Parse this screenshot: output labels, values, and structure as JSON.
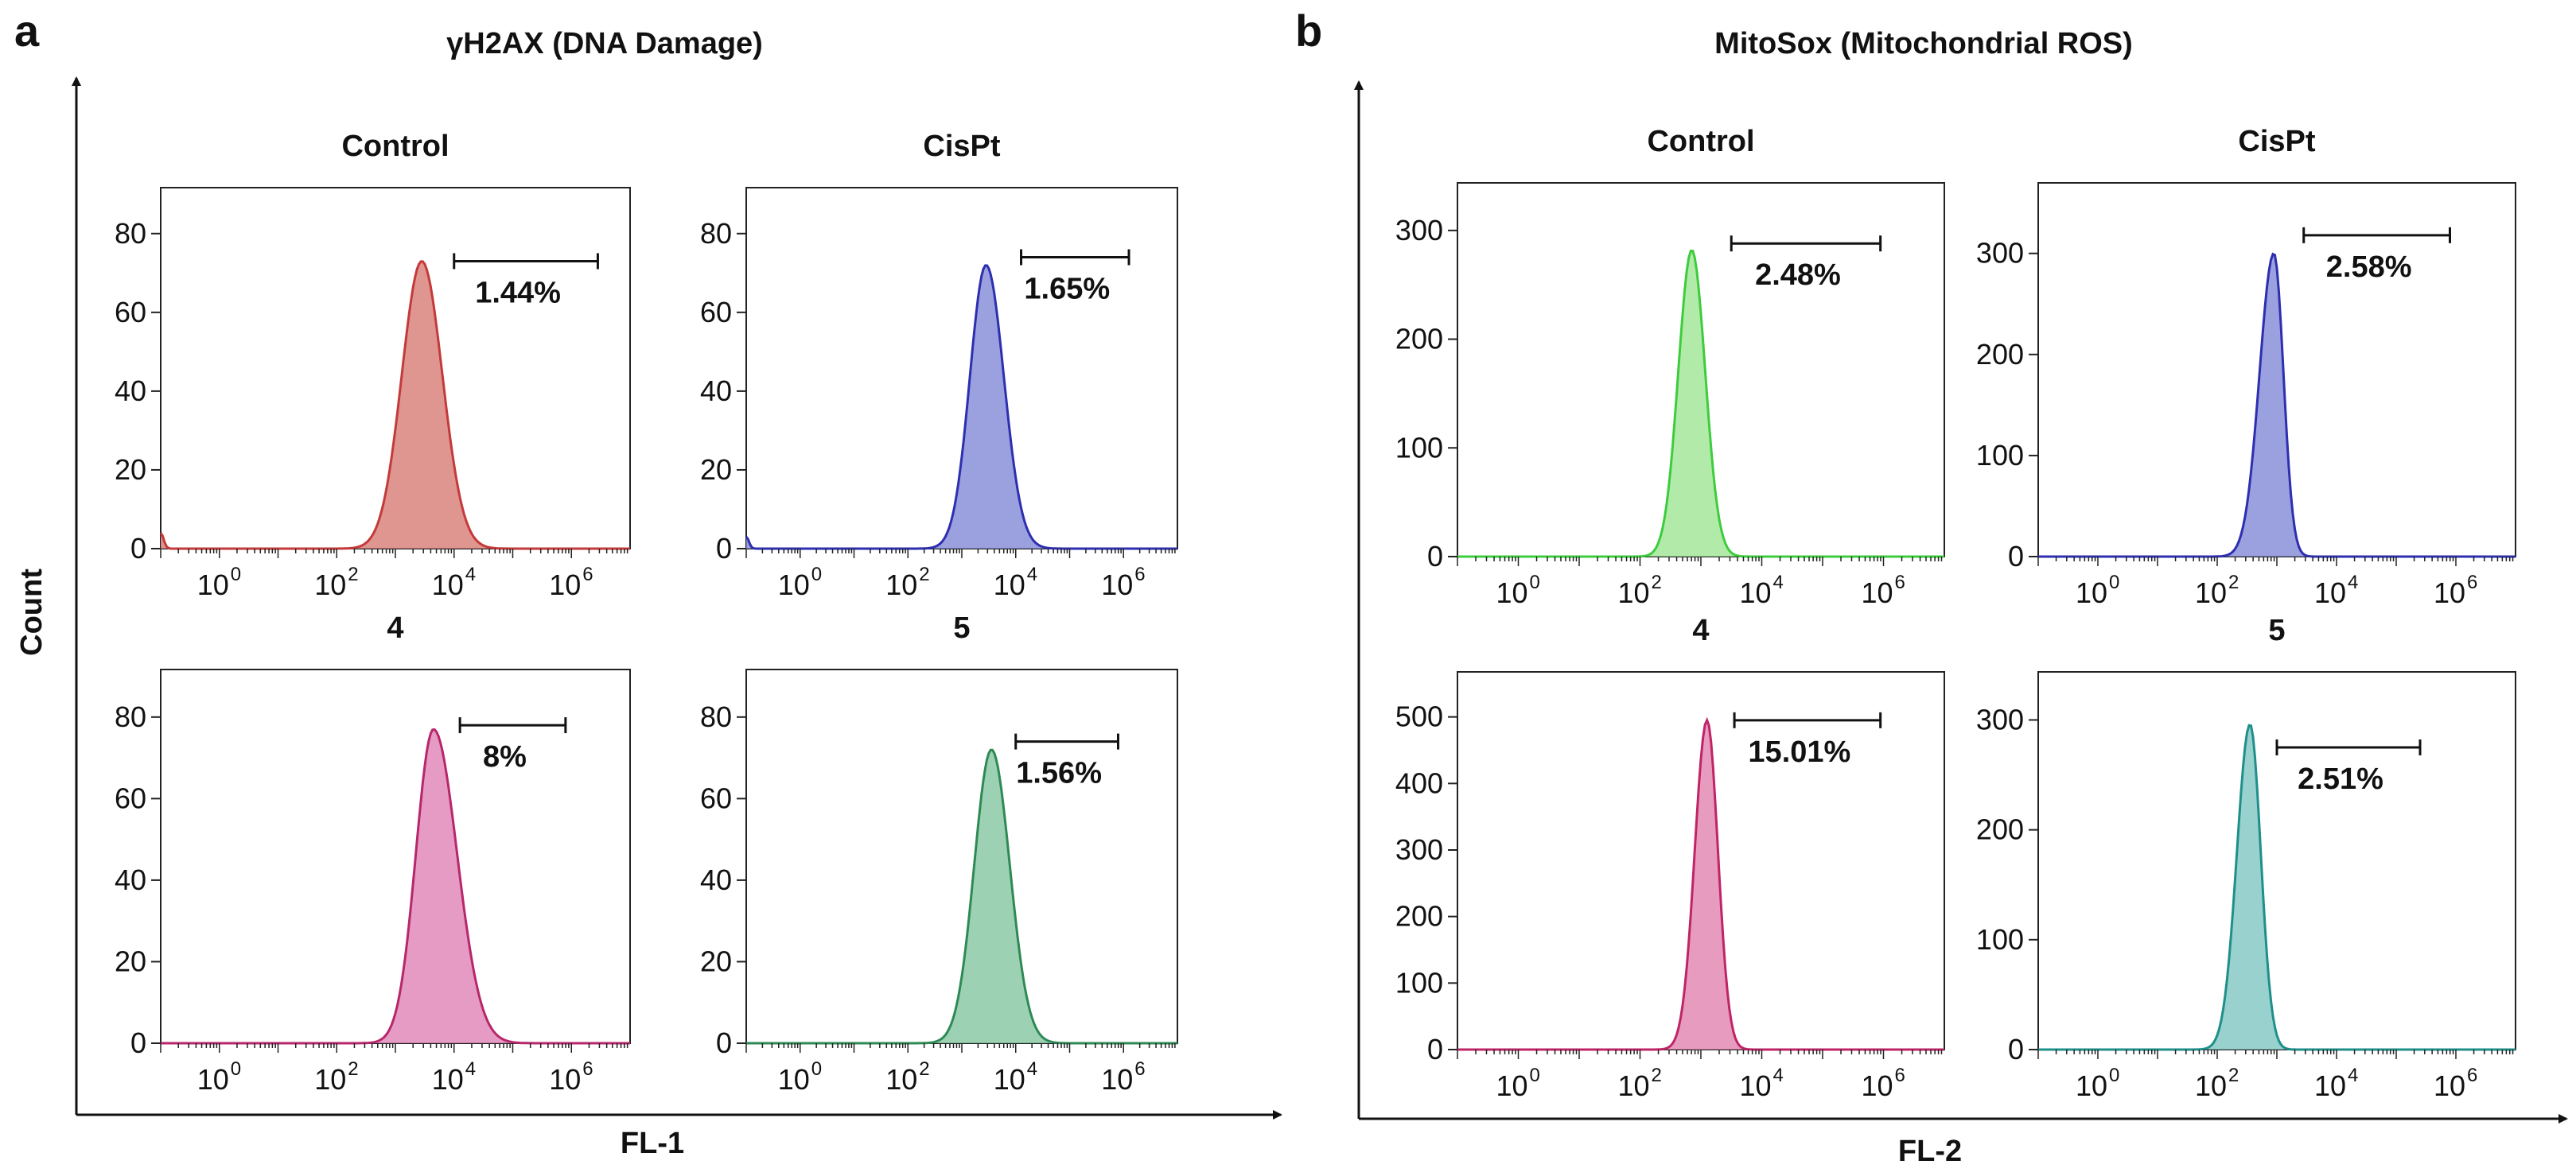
{
  "figure_labels": {
    "a": "a",
    "b": "b",
    "title_a": "γH2AX (DNA Damage)",
    "title_b": "MitoSox (Mitochondrial ROS)",
    "ylabel": "Count",
    "xlabel_a": "FL-1",
    "xlabel_b": "FL-2"
  },
  "chart_data": [
    {
      "type": "area",
      "panel": "a",
      "title": "Control",
      "xlabel": "FL-1",
      "ylabel": "Count",
      "x_scale": "log10",
      "x_ticks": [
        "10",
        "10",
        "10",
        "10"
      ],
      "x_tick_exps": [
        "0",
        "2",
        "4",
        "6"
      ],
      "x_tick_values": [
        0,
        2,
        4,
        6
      ],
      "xlim": [
        -1.0,
        7.0
      ],
      "y_ticks": [
        "0",
        "20",
        "40",
        "60",
        "80"
      ],
      "y_tick_values": [
        0,
        20,
        40,
        60,
        80
      ],
      "ylim": [
        0,
        88
      ],
      "color": "#c43a3a",
      "fill": "#d9827c",
      "peak_log10": 3.45,
      "peak_height": 73,
      "sigma_left": 0.34,
      "sigma_right": 0.35,
      "baseline_start": 4,
      "gate_label": "1.44%",
      "gate_log10": [
        4.0,
        6.45
      ],
      "gate_y": 73
    },
    {
      "type": "area",
      "panel": "a",
      "title": "CisPt",
      "xlabel": "FL-1",
      "ylabel": "Count",
      "x_scale": "log10",
      "x_ticks": [
        "10",
        "10",
        "10",
        "10"
      ],
      "x_tick_exps": [
        "0",
        "2",
        "4",
        "6"
      ],
      "x_tick_values": [
        0,
        2,
        4,
        6
      ],
      "xlim": [
        -1.0,
        7.0
      ],
      "y_ticks": [
        "0",
        "20",
        "40",
        "60",
        "80"
      ],
      "y_tick_values": [
        0,
        20,
        40,
        60,
        80
      ],
      "ylim": [
        0,
        88
      ],
      "color": "#2d2fb0",
      "fill": "#8a8fd8",
      "peak_log10": 3.45,
      "peak_height": 72,
      "sigma_left": 0.3,
      "sigma_right": 0.33,
      "baseline_start": 3,
      "gate_label": "1.65%",
      "gate_log10": [
        4.1,
        6.1
      ],
      "gate_y": 74
    },
    {
      "type": "area",
      "panel": "a",
      "title": "4",
      "xlabel": "FL-1",
      "ylabel": "Count",
      "x_scale": "log10",
      "x_ticks": [
        "10",
        "10",
        "10",
        "10"
      ],
      "x_tick_exps": [
        "0",
        "2",
        "4",
        "6"
      ],
      "x_tick_values": [
        0,
        2,
        4,
        6
      ],
      "xlim": [
        -1.0,
        7.0
      ],
      "y_ticks": [
        "0",
        "20",
        "40",
        "60",
        "80"
      ],
      "y_tick_values": [
        0,
        20,
        40,
        60,
        80
      ],
      "ylim": [
        0,
        88
      ],
      "color": "#b8266b",
      "fill": "#e08ab8",
      "peak_log10": 3.65,
      "peak_height": 77,
      "sigma_left": 0.3,
      "sigma_right": 0.4,
      "baseline_start": 0,
      "gate_label": "8%",
      "gate_log10": [
        4.1,
        5.9
      ],
      "gate_y": 78
    },
    {
      "type": "area",
      "panel": "a",
      "title": "5",
      "xlabel": "FL-1",
      "ylabel": "Count",
      "x_scale": "log10",
      "x_ticks": [
        "10",
        "10",
        "10",
        "10"
      ],
      "x_tick_exps": [
        "0",
        "2",
        "4",
        "6"
      ],
      "x_tick_values": [
        0,
        2,
        4,
        6
      ],
      "xlim": [
        -1.0,
        7.0
      ],
      "y_ticks": [
        "0",
        "20",
        "40",
        "60",
        "80"
      ],
      "y_tick_values": [
        0,
        20,
        40,
        60,
        80
      ],
      "ylim": [
        0,
        88
      ],
      "color": "#2e8a55",
      "fill": "#8cc9a6",
      "peak_log10": 3.55,
      "peak_height": 72,
      "sigma_left": 0.32,
      "sigma_right": 0.34,
      "baseline_start": 0,
      "gate_label": "1.56%",
      "gate_log10": [
        4.0,
        5.9
      ],
      "gate_y": 74
    },
    {
      "type": "area",
      "panel": "b",
      "title": "Control",
      "xlabel": "FL-2",
      "ylabel": "Count",
      "x_scale": "log10",
      "x_ticks": [
        "10",
        "10",
        "10",
        "10"
      ],
      "x_tick_exps": [
        "0",
        "2",
        "4",
        "6"
      ],
      "x_tick_values": [
        0,
        2,
        4,
        6
      ],
      "xlim": [
        -1.0,
        7.0
      ],
      "y_ticks": [
        "0",
        "100",
        "200",
        "300"
      ],
      "y_tick_values": [
        0,
        100,
        200,
        300
      ],
      "ylim": [
        0,
        330
      ],
      "color": "#3dcc3d",
      "fill": "#a4e89a",
      "peak_log10": 2.85,
      "peak_height": 282,
      "sigma_left": 0.22,
      "sigma_right": 0.22,
      "baseline_start": 0,
      "gate_label": "2.48%",
      "gate_log10": [
        3.5,
        5.95
      ],
      "gate_y": 288
    },
    {
      "type": "area",
      "panel": "b",
      "title": "CisPt",
      "xlabel": "FL-2",
      "ylabel": "Count",
      "x_scale": "log10",
      "x_ticks": [
        "10",
        "10",
        "10",
        "10"
      ],
      "x_tick_exps": [
        "0",
        "2",
        "4",
        "6"
      ],
      "x_tick_values": [
        0,
        2,
        4,
        6
      ],
      "xlim": [
        -1.0,
        7.0
      ],
      "y_ticks": [
        "0",
        "100",
        "200",
        "300"
      ],
      "y_tick_values": [
        0,
        100,
        200,
        300
      ],
      "ylim": [
        0,
        355
      ],
      "color": "#2d2fb0",
      "fill": "#8a8fd8",
      "peak_log10": 2.95,
      "peak_height": 300,
      "sigma_left": 0.24,
      "sigma_right": 0.16,
      "baseline_start": 0,
      "gate_label": "2.58%",
      "gate_log10": [
        3.45,
        5.9
      ],
      "gate_y": 318
    },
    {
      "type": "area",
      "panel": "b",
      "title": "4",
      "xlabel": "FL-2",
      "ylabel": "Count",
      "x_scale": "log10",
      "x_ticks": [
        "10",
        "10",
        "10",
        "10"
      ],
      "x_tick_exps": [
        "0",
        "2",
        "4",
        "6"
      ],
      "x_tick_values": [
        0,
        2,
        4,
        6
      ],
      "xlim": [
        -1.0,
        7.0
      ],
      "y_ticks": [
        "0",
        "100",
        "200",
        "300",
        "400",
        "500"
      ],
      "y_tick_values": [
        0,
        100,
        200,
        300,
        400,
        500
      ],
      "ylim": [
        0,
        545
      ],
      "color": "#c02466",
      "fill": "#e28ab4",
      "peak_log10": 3.1,
      "peak_height": 495,
      "sigma_left": 0.2,
      "sigma_right": 0.18,
      "baseline_start": 0,
      "gate_label": "15.01%",
      "gate_log10": [
        3.55,
        5.95
      ],
      "gate_y": 495
    },
    {
      "type": "area",
      "panel": "b",
      "title": "5",
      "xlabel": "FL-2",
      "ylabel": "Count",
      "x_scale": "log10",
      "x_ticks": [
        "10",
        "10",
        "10",
        "10"
      ],
      "x_tick_exps": [
        "0",
        "2",
        "4",
        "6"
      ],
      "x_tick_values": [
        0,
        2,
        4,
        6
      ],
      "xlim": [
        -1.0,
        7.0
      ],
      "y_ticks": [
        "0",
        "100",
        "200",
        "300"
      ],
      "y_tick_values": [
        0,
        100,
        200,
        300
      ],
      "ylim": [
        0,
        330
      ],
      "color": "#1f8f8a",
      "fill": "#86c9c6",
      "peak_log10": 2.55,
      "peak_height": 296,
      "sigma_left": 0.22,
      "sigma_right": 0.18,
      "baseline_start": 0,
      "gate_label": "2.51%",
      "gate_log10": [
        3.0,
        5.4
      ],
      "gate_y": 275
    }
  ]
}
